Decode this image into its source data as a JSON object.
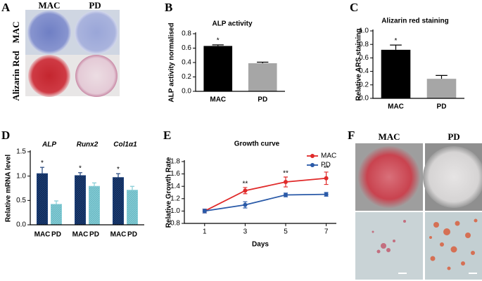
{
  "figure": {
    "panel_letters": [
      "A",
      "B",
      "C",
      "D",
      "E",
      "F"
    ],
    "panel_a": {
      "column_labels": [
        "MAC",
        "PD"
      ],
      "row_labels": [
        "MAC",
        "Alizarin Red"
      ]
    },
    "panel_f": {
      "column_labels": [
        "MAC",
        "PD"
      ]
    }
  },
  "chart_data": [
    {
      "type": "bar",
      "title": "ALP activity",
      "y_label": "ALP activity normalised",
      "categories": [
        "MAC",
        "PD"
      ],
      "values": [
        0.63,
        0.39
      ],
      "errors": [
        0.015,
        0.015
      ],
      "significance": [
        "*",
        null
      ],
      "colors": [
        "#000000",
        "#a6a6a6"
      ],
      "ylim": [
        0,
        0.8
      ],
      "yticks": [
        {
          "value": 0,
          "label": "0.0"
        },
        0.2,
        0.4,
        0.6,
        0.8
      ]
    },
    {
      "type": "bar",
      "title": "Alizarin red staining",
      "y_label": "Relative ARS staining",
      "categories": [
        "MAC",
        "PD"
      ],
      "values": [
        0.72,
        0.29
      ],
      "errors": [
        0.07,
        0.05
      ],
      "significance": [
        "*",
        null
      ],
      "colors": [
        "#000000",
        "#a6a6a6"
      ],
      "ylim": [
        0,
        1
      ],
      "yticks": [
        {
          "value": 0,
          "label": "0.0"
        },
        0.2,
        0.4,
        0.6,
        0.8,
        {
          "value": 1,
          "label": "1.0"
        }
      ]
    },
    {
      "type": "grouped_bar",
      "y_label": "Relative mRNA level",
      "categories": [
        "ALP",
        "Runx2",
        "Col1α1"
      ],
      "series": [
        {
          "name": "MAC",
          "color": "#1c3f78",
          "values": [
            1.05,
            1.01,
            0.97
          ],
          "errors": [
            0.13,
            0.06,
            0.08
          ],
          "significance": [
            "*",
            "*",
            "*"
          ]
        },
        {
          "name": "PD",
          "color": "#86cdd6",
          "values": [
            0.42,
            0.79,
            0.71
          ],
          "errors": [
            0.07,
            0.07,
            0.08
          ],
          "significance": [
            null,
            null,
            null
          ]
        }
      ],
      "ylim": [
        0,
        1.5
      ],
      "yticks": [
        {
          "value": 0,
          "label": "0.0"
        },
        0.5,
        {
          "value": 1,
          "label": "1.0"
        },
        1.5
      ]
    },
    {
      "type": "line",
      "title": "Growth curve",
      "x_label": "Days",
      "y_label": "Relative Growth Rate",
      "x": [
        1,
        3,
        5,
        7
      ],
      "xlim": [
        0,
        7.5
      ],
      "xticks": [
        1,
        3,
        5,
        7
      ],
      "ylim": [
        0.8,
        1.8
      ],
      "yticks": [
        0.8,
        {
          "value": 1,
          "label": "1.0"
        },
        1.2,
        1.4,
        1.6,
        1.8
      ],
      "legend": "upper right",
      "series": [
        {
          "name": "MAC",
          "color": "#e02a2a",
          "values": [
            1.0,
            1.33,
            1.47,
            1.53
          ],
          "errors": [
            0.03,
            0.05,
            0.08,
            0.1
          ],
          "significance": [
            null,
            "**",
            "**",
            "**"
          ]
        },
        {
          "name": "PD",
          "color": "#2a5aa8",
          "values": [
            1.0,
            1.1,
            1.26,
            1.27
          ],
          "errors": [
            0.03,
            0.05,
            0.03,
            0.03
          ],
          "significance": [
            null,
            null,
            null,
            null
          ]
        }
      ]
    }
  ]
}
